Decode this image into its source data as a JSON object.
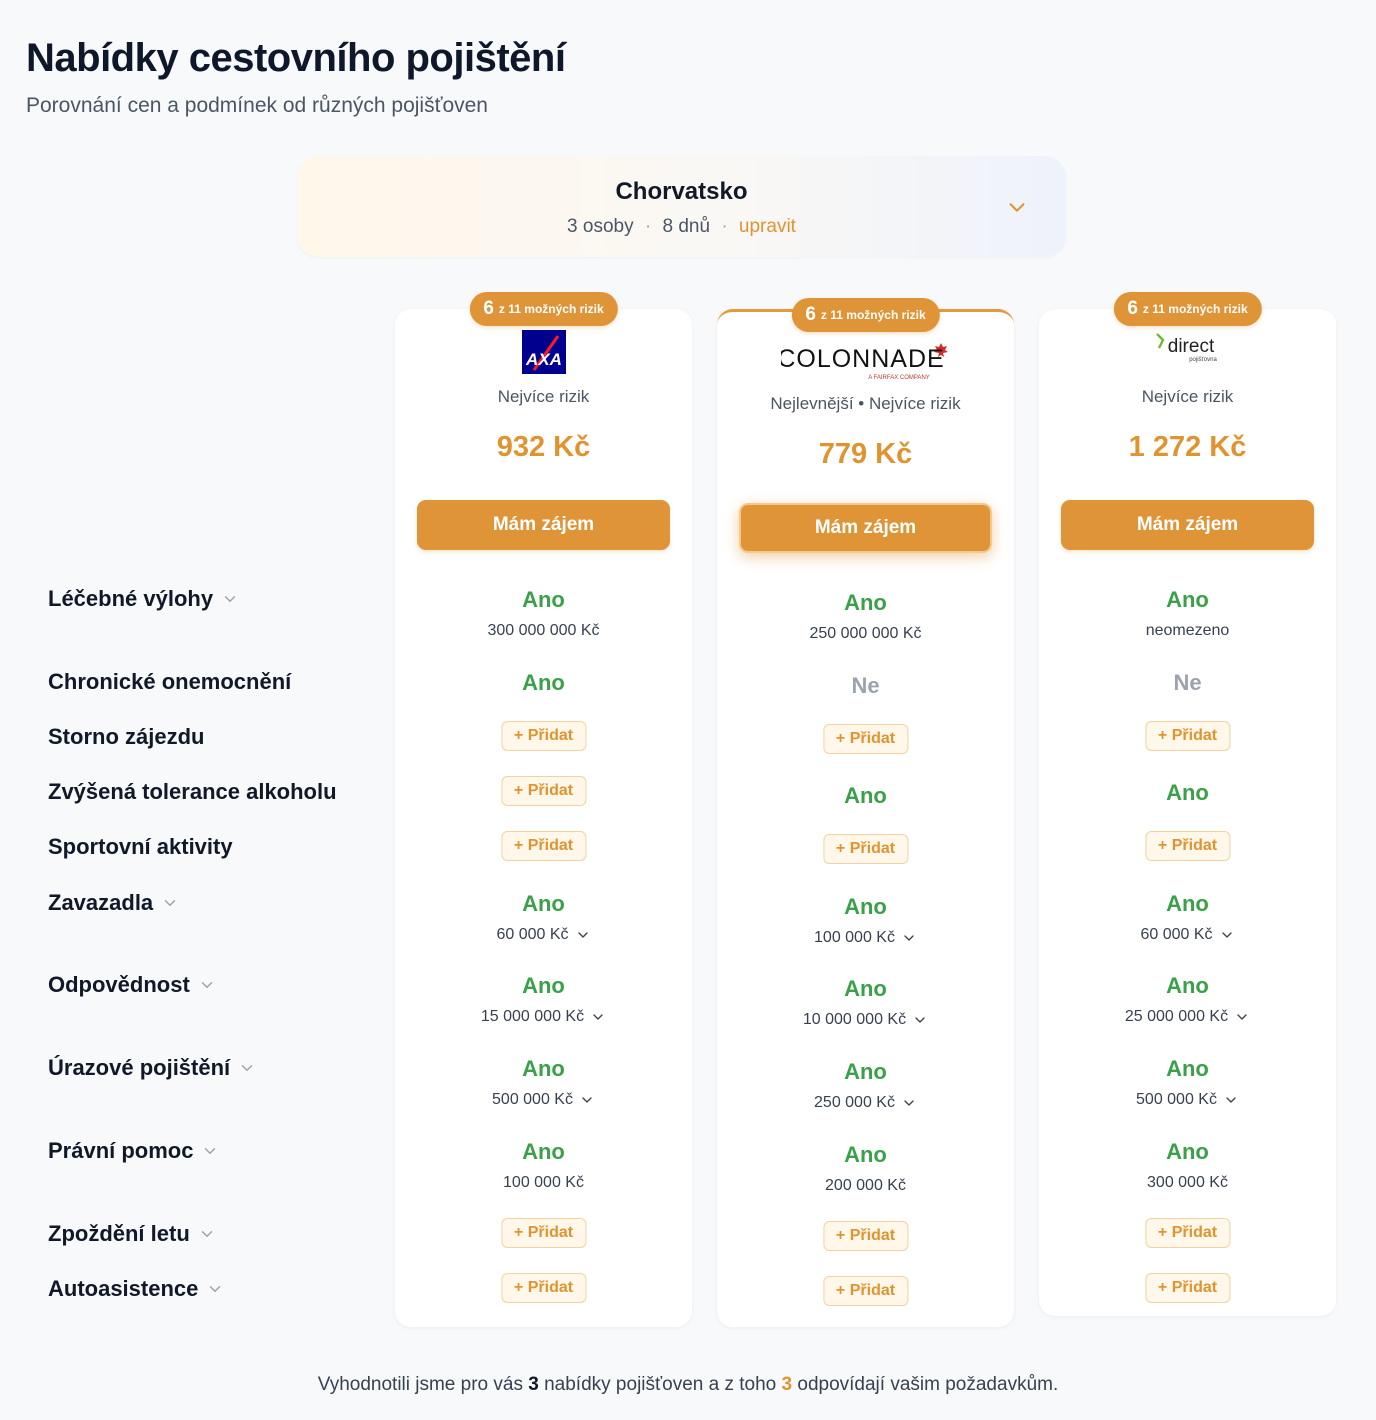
{
  "page": {
    "title": "Nabídky cestovního pojištění",
    "subtitle": "Porovnání cen a podmínek od různých pojišťoven"
  },
  "trip": {
    "destination": "Chorvatsko",
    "persons": "3 osoby",
    "days": "8 dnů",
    "separator": "·",
    "edit_label": "upravit"
  },
  "colors": {
    "accent": "#df9438",
    "yes": "#3aa049",
    "no": "#9ca3af"
  },
  "rows": [
    {
      "label": "Léčebné výlohy",
      "expandable": true
    },
    {
      "label": "Chronické onemocnění",
      "expandable": false
    },
    {
      "label": "Storno zájezdu",
      "expandable": false
    },
    {
      "label": "Zvýšená tolerance alkoholu",
      "expandable": false
    },
    {
      "label": "Sportovní aktivity",
      "expandable": false
    },
    {
      "label": "Zavazadla",
      "expandable": true
    },
    {
      "label": "Odpovědnost",
      "expandable": true
    },
    {
      "label": "Úrazové pojištění",
      "expandable": true
    },
    {
      "label": "Právní pomoc",
      "expandable": true
    },
    {
      "label": "Zpoždění letu",
      "expandable": true
    },
    {
      "label": "Autoasistence",
      "expandable": true
    }
  ],
  "offers": [
    {
      "insurer": "AXA",
      "logo_text": "AXA",
      "badge_num": "6",
      "badge_text": "z 11 možných rizik",
      "tag": "Nejvíce rizik",
      "price": "932 Kč",
      "cta": "Mám zájem",
      "featured": false,
      "cells": [
        {
          "type": "yes",
          "text": "Ano",
          "sub": "300 000 000 Kč",
          "chevron": false
        },
        {
          "type": "yes",
          "text": "Ano"
        },
        {
          "type": "add",
          "text": "+ Přidat"
        },
        {
          "type": "add",
          "text": "+ Přidat"
        },
        {
          "type": "add",
          "text": "+ Přidat"
        },
        {
          "type": "yes",
          "text": "Ano",
          "sub": "60 000 Kč",
          "chevron": true
        },
        {
          "type": "yes",
          "text": "Ano",
          "sub": "15 000 000 Kč",
          "chevron": true
        },
        {
          "type": "yes",
          "text": "Ano",
          "sub": "500 000 Kč",
          "chevron": true
        },
        {
          "type": "yes",
          "text": "Ano",
          "sub": "100 000 Kč",
          "chevron": false
        },
        {
          "type": "add",
          "text": "+ Přidat"
        },
        {
          "type": "add",
          "text": "+ Přidat"
        }
      ]
    },
    {
      "insurer": "Colonnade",
      "logo_text": "Colonnade",
      "logo_sub": "A FAIRFAX COMPANY",
      "badge_num": "6",
      "badge_text": "z 11 možných rizik",
      "tag": "Nejlevnější • Nejvíce rizik",
      "price": "779 Kč",
      "cta": "Mám zájem",
      "featured": true,
      "cells": [
        {
          "type": "yes",
          "text": "Ano",
          "sub": "250 000 000 Kč",
          "chevron": false
        },
        {
          "type": "no",
          "text": "Ne"
        },
        {
          "type": "add",
          "text": "+ Přidat"
        },
        {
          "type": "yes",
          "text": "Ano"
        },
        {
          "type": "add",
          "text": "+ Přidat"
        },
        {
          "type": "yes",
          "text": "Ano",
          "sub": "100 000 Kč",
          "chevron": true
        },
        {
          "type": "yes",
          "text": "Ano",
          "sub": "10 000 000 Kč",
          "chevron": true
        },
        {
          "type": "yes",
          "text": "Ano",
          "sub": "250 000 Kč",
          "chevron": true
        },
        {
          "type": "yes",
          "text": "Ano",
          "sub": "200 000 Kč",
          "chevron": false
        },
        {
          "type": "add",
          "text": "+ Přidat"
        },
        {
          "type": "add",
          "text": "+ Přidat"
        }
      ]
    },
    {
      "insurer": "Direct pojišťovna",
      "logo_text": "direct",
      "logo_sub": "pojišťovna",
      "badge_num": "6",
      "badge_text": "z 11 možných rizik",
      "tag": "Nejvíce rizik",
      "price": "1 272 Kč",
      "cta": "Mám zájem",
      "featured": false,
      "cells": [
        {
          "type": "yes",
          "text": "Ano",
          "sub": "neomezeno",
          "chevron": false
        },
        {
          "type": "no",
          "text": "Ne"
        },
        {
          "type": "add",
          "text": "+ Přidat"
        },
        {
          "type": "yes",
          "text": "Ano"
        },
        {
          "type": "add",
          "text": "+ Přidat"
        },
        {
          "type": "yes",
          "text": "Ano",
          "sub": "60 000 Kč",
          "chevron": true
        },
        {
          "type": "yes",
          "text": "Ano",
          "sub": "25 000 000 Kč",
          "chevron": true
        },
        {
          "type": "yes",
          "text": "Ano",
          "sub": "500 000 Kč",
          "chevron": true
        },
        {
          "type": "yes",
          "text": "Ano",
          "sub": "300 000 Kč",
          "chevron": false
        },
        {
          "type": "add",
          "text": "+ Přidat"
        },
        {
          "type": "add",
          "text": "+ Přidat"
        }
      ]
    }
  ],
  "footer": {
    "part1": "Vyhodnotili jsme pro vás",
    "count_total": "3",
    "part2": "nabídky pojišťoven a z toho",
    "count_match": "3",
    "part3": "odpovídají vašim požadavkům."
  }
}
